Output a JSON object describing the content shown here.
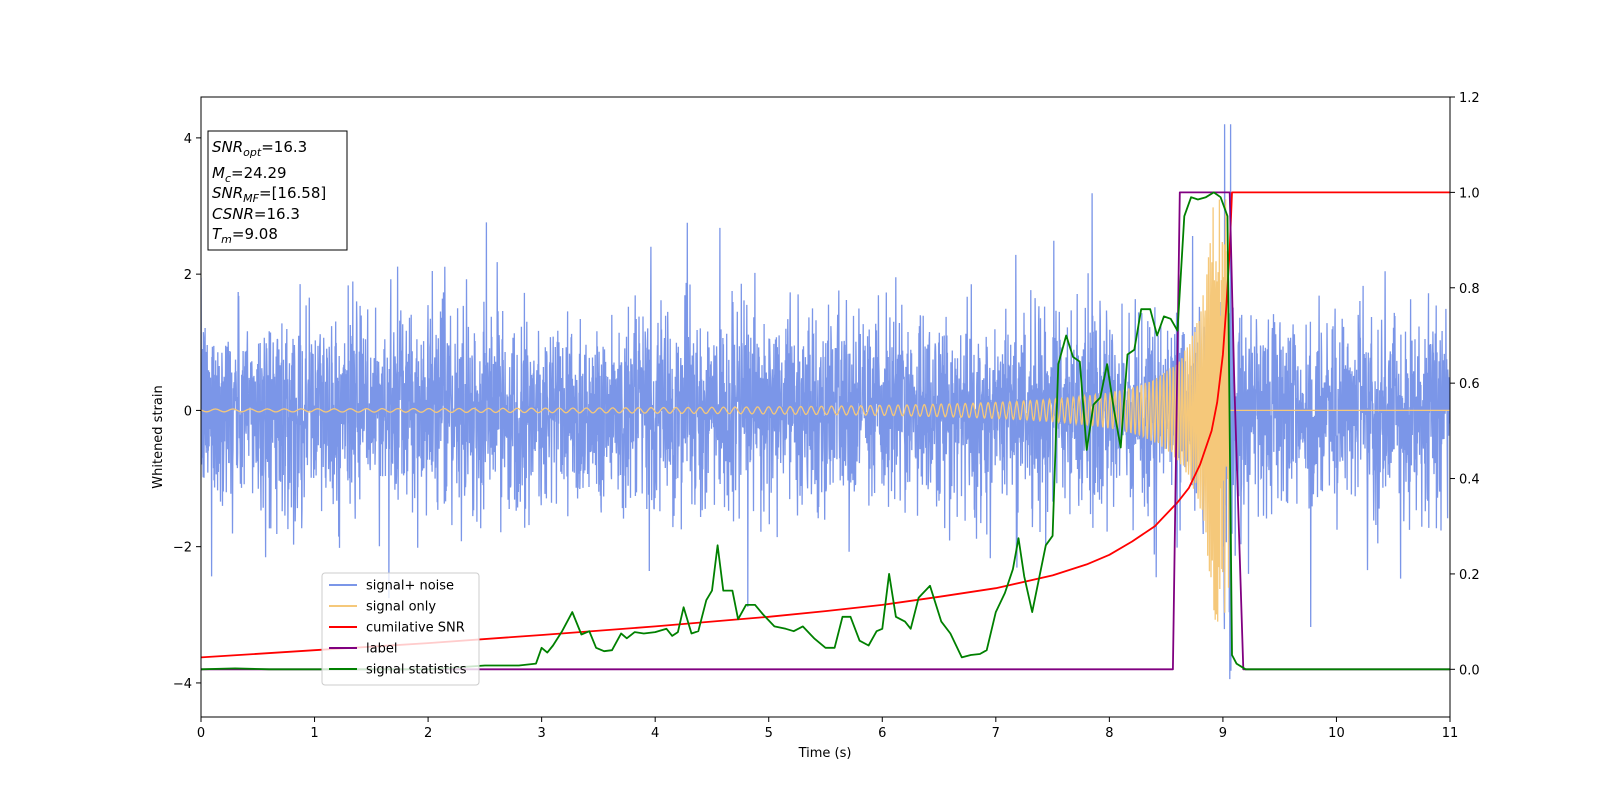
{
  "chart_data": {
    "type": "line",
    "xlabel": "Time (s)",
    "ylabel": "Whitened strain",
    "xlim": [
      0,
      11
    ],
    "ylim": [
      -4.5,
      4.6
    ],
    "y2lim": [
      -0.1,
      1.2
    ],
    "x_ticks": [
      "0",
      "1",
      "2",
      "3",
      "4",
      "5",
      "6",
      "7",
      "8",
      "9",
      "10",
      "11"
    ],
    "y_ticks": [
      "4",
      "2",
      "0",
      "−2",
      "−4"
    ],
    "y2_ticks": [
      "1.2",
      "1.0",
      "0.8",
      "0.6",
      "0.4",
      "0.2",
      "0.0"
    ],
    "legend_location": "lower-left",
    "annotation": {
      "snr_opt": {
        "base": "SNR",
        "sub": "opt",
        "value": "=16.3"
      },
      "mc": {
        "base": "M",
        "sub": "c",
        "value": "=24.29"
      },
      "snr_mf": {
        "base": "SNR",
        "sub": "MF",
        "value": "=[16.58]"
      },
      "csnr": {
        "base": "CSNR",
        "sub": "",
        "value": "=16.3"
      },
      "tm": {
        "base": "T",
        "sub": "m",
        "value": "=9.08"
      }
    },
    "series": [
      {
        "name": "signal+ noise",
        "axis": "left",
        "color": "#7b96e8",
        "kind": "noise",
        "sigma": 0.9,
        "peak_abs": 4.2,
        "merger_time": 9.05
      },
      {
        "name": "signal only",
        "axis": "left",
        "color": "#f5c87a",
        "kind": "chirp",
        "amplitude_start": 0.02,
        "amplitude_peak": 3.1,
        "merger_time": 9.05
      },
      {
        "name": "cumilative SNR",
        "axis": "right",
        "color": "#ff0000",
        "kind": "line",
        "x": [
          0,
          1,
          2,
          3,
          4,
          5,
          5.5,
          6,
          6.5,
          7,
          7.5,
          7.8,
          8,
          8.2,
          8.4,
          8.6,
          8.7,
          8.8,
          8.9,
          8.95,
          9.0,
          9.03,
          9.06,
          9.08,
          11
        ],
        "y": [
          0.025,
          0.04,
          0.055,
          0.072,
          0.09,
          0.11,
          0.122,
          0.135,
          0.152,
          0.17,
          0.197,
          0.22,
          0.24,
          0.268,
          0.3,
          0.35,
          0.38,
          0.43,
          0.5,
          0.56,
          0.66,
          0.76,
          0.88,
          1.0,
          1.0
        ]
      },
      {
        "name": "label",
        "axis": "right",
        "color": "#800080",
        "kind": "line",
        "x": [
          0,
          8.56,
          8.62,
          9.06,
          9.1,
          9.18,
          11
        ],
        "y": [
          0.0,
          0.0,
          1.0,
          1.0,
          0.6,
          0.0,
          0.0
        ]
      },
      {
        "name": "signal statistics",
        "axis": "right",
        "color": "#008000",
        "kind": "line",
        "x": [
          0,
          0.3,
          0.6,
          1,
          1.5,
          2,
          2.5,
          2.8,
          2.95,
          3.0,
          3.05,
          3.1,
          3.18,
          3.27,
          3.35,
          3.42,
          3.48,
          3.55,
          3.62,
          3.7,
          3.75,
          3.82,
          3.9,
          4.0,
          4.1,
          4.15,
          4.2,
          4.25,
          4.32,
          4.38,
          4.45,
          4.5,
          4.55,
          4.6,
          4.68,
          4.73,
          4.8,
          4.88,
          4.95,
          5.05,
          5.15,
          5.22,
          5.3,
          5.4,
          5.5,
          5.58,
          5.65,
          5.72,
          5.8,
          5.88,
          5.95,
          6.0,
          6.06,
          6.12,
          6.2,
          6.25,
          6.32,
          6.42,
          6.52,
          6.6,
          6.7,
          6.78,
          6.86,
          6.92,
          7.0,
          7.08,
          7.15,
          7.2,
          7.25,
          7.32,
          7.38,
          7.44,
          7.5,
          7.55,
          7.62,
          7.68,
          7.74,
          7.8,
          7.86,
          7.92,
          7.98,
          8.04,
          8.1,
          8.16,
          8.22,
          8.28,
          8.36,
          8.42,
          8.48,
          8.54,
          8.6,
          8.66,
          8.72,
          8.78,
          8.85,
          8.92,
          8.98,
          9.04,
          9.08,
          9.12,
          9.2,
          11
        ],
        "y": [
          0.0,
          0.002,
          0.0,
          0.0,
          0.0,
          0.0,
          0.008,
          0.008,
          0.012,
          0.045,
          0.035,
          0.05,
          0.08,
          0.12,
          0.073,
          0.08,
          0.045,
          0.038,
          0.04,
          0.075,
          0.065,
          0.078,
          0.075,
          0.078,
          0.085,
          0.07,
          0.078,
          0.13,
          0.075,
          0.08,
          0.145,
          0.165,
          0.26,
          0.165,
          0.165,
          0.105,
          0.135,
          0.135,
          0.115,
          0.09,
          0.085,
          0.08,
          0.09,
          0.065,
          0.045,
          0.045,
          0.11,
          0.11,
          0.06,
          0.05,
          0.08,
          0.085,
          0.2,
          0.11,
          0.1,
          0.085,
          0.15,
          0.175,
          0.1,
          0.075,
          0.025,
          0.03,
          0.032,
          0.04,
          0.12,
          0.16,
          0.21,
          0.275,
          0.195,
          0.12,
          0.19,
          0.26,
          0.28,
          0.64,
          0.7,
          0.655,
          0.645,
          0.46,
          0.555,
          0.57,
          0.64,
          0.545,
          0.465,
          0.66,
          0.67,
          0.755,
          0.755,
          0.7,
          0.74,
          0.735,
          0.71,
          0.95,
          0.99,
          0.985,
          0.99,
          1.0,
          0.99,
          0.95,
          0.03,
          0.012,
          0.0,
          0.0
        ]
      }
    ]
  }
}
